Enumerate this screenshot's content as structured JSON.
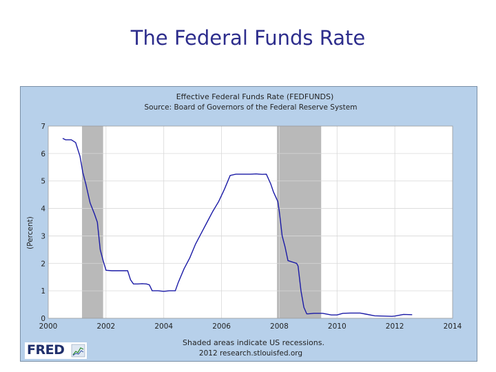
{
  "slide": {
    "title": "The Federal Funds Rate"
  },
  "chart_data": {
    "type": "line",
    "title": "Effective Federal Funds Rate (FEDFUNDS)",
    "subtitle": "Source: Board of Governors of the Federal Reserve System",
    "ylabel": "(Percent)",
    "xlabel": "",
    "xlim": [
      2000,
      2014
    ],
    "ylim": [
      0,
      7
    ],
    "xticks": [
      "2000",
      "2002",
      "2004",
      "2006",
      "2008",
      "2010",
      "2012",
      "2014"
    ],
    "yticks": [
      "0",
      "1",
      "2",
      "3",
      "4",
      "5",
      "6",
      "7"
    ],
    "grid": true,
    "line_color": "#1a1aa6",
    "recessions": [
      [
        2001.17,
        2001.9
      ],
      [
        2007.92,
        2009.45
      ]
    ],
    "recession_color": "#b9b9b9",
    "series": [
      {
        "x": [
          2000.5,
          2000.6,
          2000.8,
          2000.95,
          2001.1,
          2001.2,
          2001.3,
          2001.45,
          2001.6,
          2001.7,
          2001.8,
          2001.9,
          2002.0,
          2002.2,
          2002.5,
          2002.75,
          2002.85,
          2002.95,
          2003.1,
          2003.25,
          2003.4,
          2003.5,
          2003.6,
          2003.8,
          2004.0,
          2004.2,
          2004.4,
          2004.5,
          2004.7,
          2004.9,
          2005.1,
          2005.3,
          2005.5,
          2005.7,
          2005.9,
          2006.1,
          2006.3,
          2006.5,
          2006.8,
          2007.0,
          2007.2,
          2007.4,
          2007.55,
          2007.7,
          2007.8,
          2007.95,
          2008.0,
          2008.1,
          2008.2,
          2008.3,
          2008.6,
          2008.65,
          2008.75,
          2008.85,
          2008.95,
          2009.0,
          2009.2,
          2009.5,
          2009.8,
          2010.0,
          2010.2,
          2010.5,
          2010.8,
          2011.0,
          2011.3,
          2011.6,
          2011.9,
          2012.0,
          2012.3,
          2012.6
        ],
        "y": [
          6.55,
          6.5,
          6.5,
          6.4,
          5.9,
          5.3,
          4.9,
          4.2,
          3.8,
          3.5,
          2.5,
          2.1,
          1.75,
          1.73,
          1.73,
          1.73,
          1.4,
          1.25,
          1.25,
          1.26,
          1.25,
          1.22,
          1.0,
          1.0,
          0.98,
          1.0,
          1.0,
          1.3,
          1.8,
          2.2,
          2.7,
          3.1,
          3.5,
          3.9,
          4.25,
          4.7,
          5.2,
          5.25,
          5.25,
          5.25,
          5.26,
          5.24,
          5.25,
          4.9,
          4.6,
          4.25,
          3.9,
          3.0,
          2.6,
          2.1,
          2.0,
          1.9,
          1.0,
          0.4,
          0.16,
          0.16,
          0.18,
          0.18,
          0.12,
          0.12,
          0.18,
          0.19,
          0.19,
          0.15,
          0.09,
          0.08,
          0.07,
          0.08,
          0.14,
          0.13
        ]
      }
    ],
    "footnote": "Shaded areas indicate US recessions.",
    "credit": "2012 research.stlouisfed.org",
    "logo_text": "FRED"
  }
}
